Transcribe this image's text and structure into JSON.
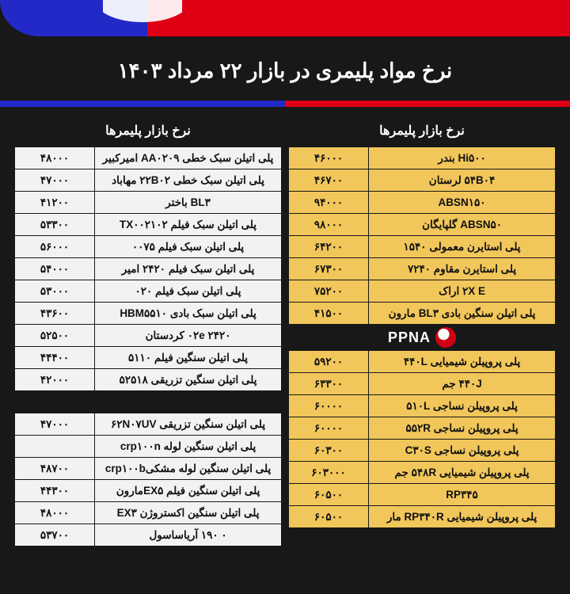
{
  "title": "نرخ مواد پلیمری در بازار ۲۲ مرداد ۱۴۰۳",
  "column_header": "نرخ بازار پلیمرها",
  "logo_text": "PPNA",
  "colors": {
    "bg": "#181818",
    "blue": "#2229c6",
    "red": "#e00015",
    "cell_left": "#f2f2f2",
    "cell_right": "#f1c65a",
    "text": "#111111",
    "title": "#ffffff"
  },
  "right_table": [
    {
      "name": "Hi۵۰۰ بندر",
      "price": "۴۶۰۰۰"
    },
    {
      "name": "۵۴B۰۴ لرستان",
      "price": "۴۶۷۰۰"
    },
    {
      "name": "ABSN۱۵۰",
      "price": "۹۴۰۰۰"
    },
    {
      "name": "ABSN۵۰ گلپایگان",
      "price": "۹۸۰۰۰"
    },
    {
      "name": "پلی استایرن معمولی ۱۵۴۰",
      "price": "۶۴۲۰۰"
    },
    {
      "name": "پلی استایرن مقاوم ۷۲۴۰",
      "price": "۶۷۳۰۰"
    },
    {
      "name": "۲X E اراک",
      "price": "۷۵۲۰۰"
    },
    {
      "name": "پلی اتیلن سنگین بادی BL۳ مارون",
      "price": "۴۱۵۰۰"
    },
    {
      "logo": true
    },
    {
      "name": "پلی پروپیلن شیمیایی ۴۴۰L",
      "price": "۵۹۲۰۰"
    },
    {
      "name": "۴۴۰J جم",
      "price": "۶۳۳۰۰"
    },
    {
      "name": "پلی پروپیلن نساجی ۵۱۰L",
      "price": "۶۰۰۰۰"
    },
    {
      "name": "پلی پروپیلن نساجی ۵۵۲R",
      "price": "۶۰۰۰۰"
    },
    {
      "name": "پلی پروپیلن نساجی C۳۰S",
      "price": "۶۰۳۰۰"
    },
    {
      "name": "پلی پروپیلن شیمیایی ۵۴۸R جم",
      "price": "۶۰۳۰۰۰"
    },
    {
      "name": "RP۳۴۵",
      "price": "۶۰۵۰۰"
    },
    {
      "name": "پلی پروپیلن شیمیایی RP۳۴۰R مار",
      "price": "۶۰۵۰۰"
    }
  ],
  "left_table": [
    {
      "name": "پلی اتیلن سبک خطی AA۰۲۰۹ امیرکبیر",
      "price": "۴۸۰۰۰"
    },
    {
      "name": "پلی اتیلن سبک خطی ۲۲B۰۲ مهاباد",
      "price": "۴۷۰۰۰"
    },
    {
      "name": "BL۳ باختر",
      "price": "۴۱۲۰۰"
    },
    {
      "name": "پلی اتیلن سبک فیلم TX۰۰۲۱۰۲",
      "price": "۵۳۳۰۰"
    },
    {
      "name": "پلی اتیلن سبک فیلم ۰۰۷۵",
      "price": "۵۶۰۰۰"
    },
    {
      "name": "پلی اتیلن سبک فیلم ۲۴۲۰ امیر",
      "price": "۵۴۰۰۰"
    },
    {
      "name": "پلی اتیلن سبک فیلم ۰۲۰",
      "price": "۵۳۰۰۰"
    },
    {
      "name": "پلی اتیلن سبک بادی HBM۵۵۱۰",
      "price": "۴۳۶۰۰"
    },
    {
      "name": "۰۲e ۲۴۲۰ کردستان",
      "price": "۵۲۵۰۰"
    },
    {
      "name": "پلی اتیلن سنگین فیلم ۵۱۱۰",
      "price": "۴۴۴۰۰"
    },
    {
      "name": "پلی اتیلن سنگین تزریقی ۵۲۵۱۸",
      "price": "۴۲۰۰۰"
    },
    {
      "blank": true
    },
    {
      "name": "پلی اتیلن سنگین تزریقی ۶۲N۰۷UV",
      "price": "۴۷۰۰۰"
    },
    {
      "name": "پلی اتیلن سنگین لوله crp۱۰۰n",
      "price": ""
    },
    {
      "name": "پلی اتیلن سنگین لوله مشکیcrp۱۰۰b",
      "price": "۴۸۷۰۰"
    },
    {
      "name": "پلی اتیلن سنگین فیلم EX۵مارون",
      "price": "۴۴۳۰۰"
    },
    {
      "name": "پلی اتیلن سنگین اکستروژن EX۳",
      "price": "۴۸۰۰۰"
    },
    {
      "name": "۰ ۱۹۰ آریاساسول",
      "price": "۵۳۷۰۰"
    }
  ]
}
